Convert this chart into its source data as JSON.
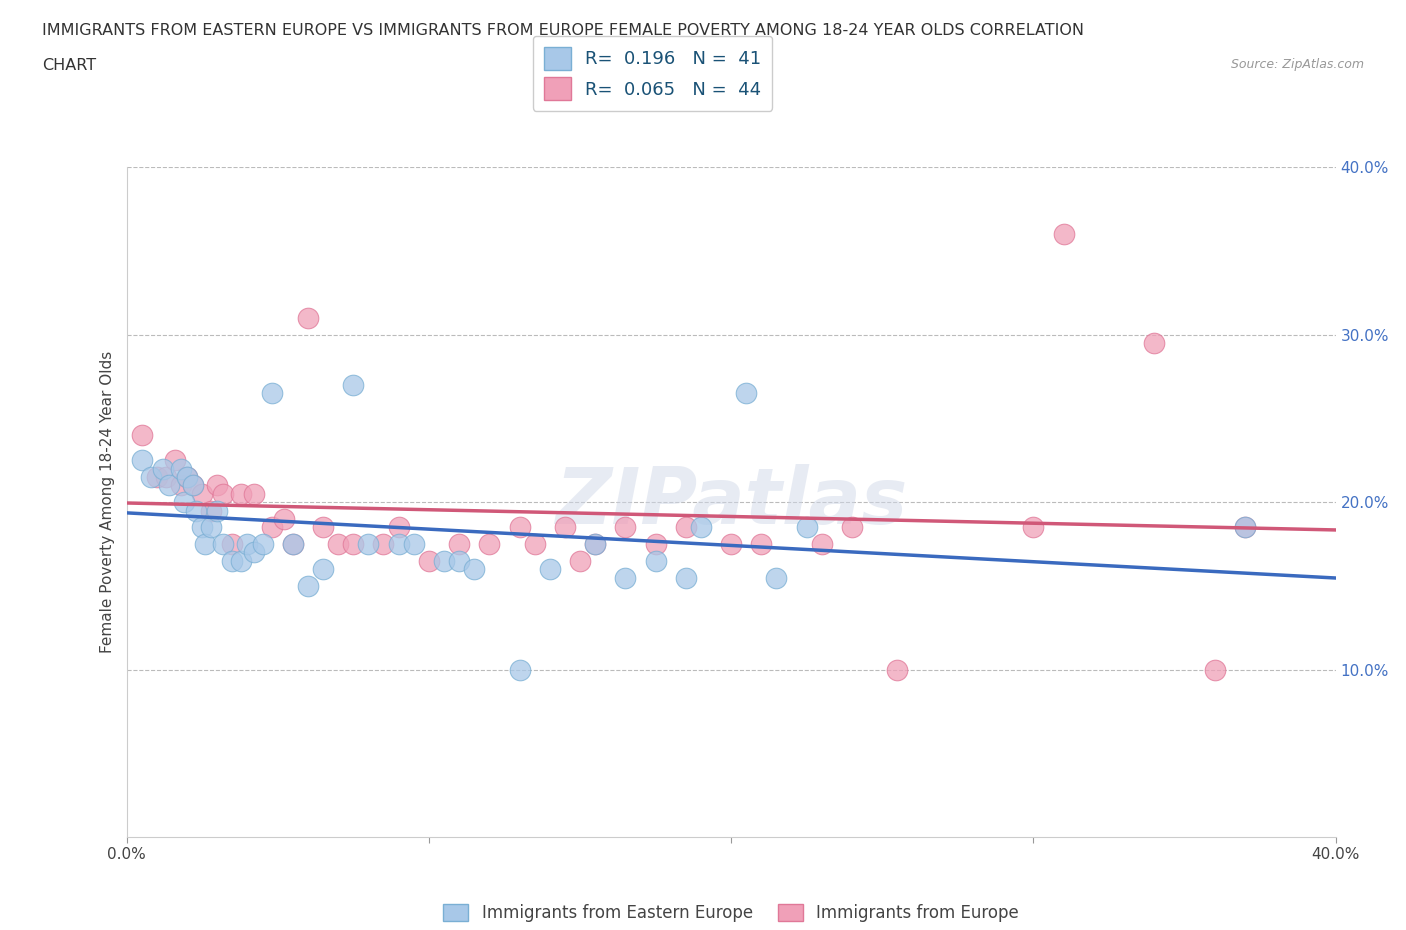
{
  "title_line1": "IMMIGRANTS FROM EASTERN EUROPE VS IMMIGRANTS FROM EUROPE FEMALE POVERTY AMONG 18-24 YEAR OLDS CORRELATION",
  "title_line2": "CHART",
  "source": "Source: ZipAtlas.com",
  "ylabel": "Female Poverty Among 18-24 Year Olds",
  "xlim": [
    0.0,
    0.4
  ],
  "ylim": [
    0.0,
    0.4
  ],
  "xtick_vals": [
    0.0,
    0.1,
    0.2,
    0.3,
    0.4
  ],
  "ytick_vals": [
    0.1,
    0.2,
    0.3,
    0.4
  ],
  "xtick_labels_show": [
    "0.0%",
    "40.0%"
  ],
  "ytick_labels": [
    "10.0%",
    "20.0%",
    "30.0%",
    "40.0%"
  ],
  "grid_color": "#bbbbbb",
  "background_color": "#ffffff",
  "series1_color": "#a8c8e8",
  "series2_color": "#f0a0b8",
  "series1_edge_color": "#7aafd4",
  "series2_edge_color": "#e07898",
  "series1_line_color": "#3a6abf",
  "series2_line_color": "#d05878",
  "series1_label": "Immigrants from Eastern Europe",
  "series2_label": "Immigrants from Europe",
  "series1_R": "0.196",
  "series1_N": "41",
  "series2_R": "0.065",
  "series2_N": "44",
  "legend_R_color": "#1a5276",
  "legend_N_color": "#1a5276",
  "watermark": "ZIPatlas",
  "series1_x": [
    0.005,
    0.008,
    0.012,
    0.014,
    0.018,
    0.019,
    0.02,
    0.022,
    0.023,
    0.025,
    0.026,
    0.028,
    0.03,
    0.032,
    0.035,
    0.038,
    0.04,
    0.042,
    0.045,
    0.048,
    0.055,
    0.06,
    0.065,
    0.075,
    0.08,
    0.09,
    0.095,
    0.105,
    0.11,
    0.115,
    0.13,
    0.14,
    0.155,
    0.165,
    0.175,
    0.185,
    0.19,
    0.205,
    0.215,
    0.225,
    0.37
  ],
  "series1_y": [
    0.225,
    0.215,
    0.22,
    0.21,
    0.22,
    0.2,
    0.215,
    0.21,
    0.195,
    0.185,
    0.175,
    0.185,
    0.195,
    0.175,
    0.165,
    0.165,
    0.175,
    0.17,
    0.175,
    0.265,
    0.175,
    0.15,
    0.16,
    0.27,
    0.175,
    0.175,
    0.175,
    0.165,
    0.165,
    0.16,
    0.1,
    0.16,
    0.175,
    0.155,
    0.165,
    0.155,
    0.185,
    0.265,
    0.155,
    0.185,
    0.185
  ],
  "series2_x": [
    0.005,
    0.01,
    0.013,
    0.016,
    0.018,
    0.02,
    0.022,
    0.025,
    0.028,
    0.03,
    0.032,
    0.035,
    0.038,
    0.042,
    0.048,
    0.052,
    0.055,
    0.06,
    0.065,
    0.07,
    0.075,
    0.085,
    0.09,
    0.1,
    0.11,
    0.12,
    0.13,
    0.135,
    0.145,
    0.15,
    0.155,
    0.165,
    0.175,
    0.185,
    0.2,
    0.21,
    0.23,
    0.24,
    0.255,
    0.3,
    0.31,
    0.34,
    0.36,
    0.37
  ],
  "series2_y": [
    0.24,
    0.215,
    0.215,
    0.225,
    0.21,
    0.215,
    0.21,
    0.205,
    0.195,
    0.21,
    0.205,
    0.175,
    0.205,
    0.205,
    0.185,
    0.19,
    0.175,
    0.31,
    0.185,
    0.175,
    0.175,
    0.175,
    0.185,
    0.165,
    0.175,
    0.175,
    0.185,
    0.175,
    0.185,
    0.165,
    0.175,
    0.185,
    0.175,
    0.185,
    0.175,
    0.175,
    0.175,
    0.185,
    0.1,
    0.185,
    0.36,
    0.295,
    0.1,
    0.185
  ]
}
